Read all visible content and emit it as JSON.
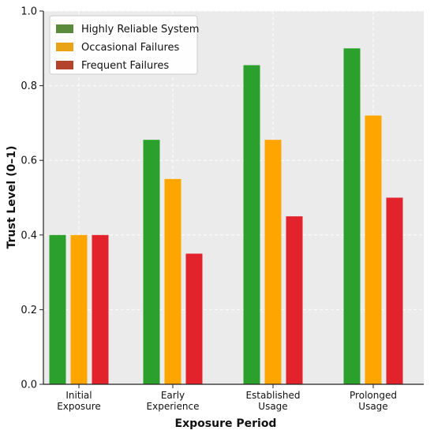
{
  "chart_data": {
    "type": "bar",
    "categories": [
      [
        "Initial",
        "Exposure"
      ],
      [
        "Early",
        "Experience"
      ],
      [
        "Established",
        "Usage"
      ],
      [
        "Prolonged",
        "Usage"
      ]
    ],
    "series": [
      {
        "name": "Highly Reliable System",
        "values": [
          0.4,
          0.655,
          0.855,
          0.9
        ],
        "color": "#2ca02c"
      },
      {
        "name": "Occasional Failures",
        "values": [
          0.4,
          0.55,
          0.655,
          0.72
        ],
        "color": "#ffa500"
      },
      {
        "name": "Frequent Failures",
        "values": [
          0.4,
          0.35,
          0.45,
          0.5
        ],
        "color": "#e3232b"
      }
    ],
    "legend_swatch_colors": [
      "#5a8a3c",
      "#e8a317",
      "#b4432c"
    ],
    "xlabel": "Exposure Period",
    "ylabel": "Trust Level (0–1)",
    "ylim": [
      0,
      1.0
    ],
    "yticks": [
      "0.0",
      "0.2",
      "0.4",
      "0.6",
      "0.8",
      "1.0"
    ],
    "grid": true,
    "legend_position": "top-left",
    "background": "#ebebeb"
  }
}
